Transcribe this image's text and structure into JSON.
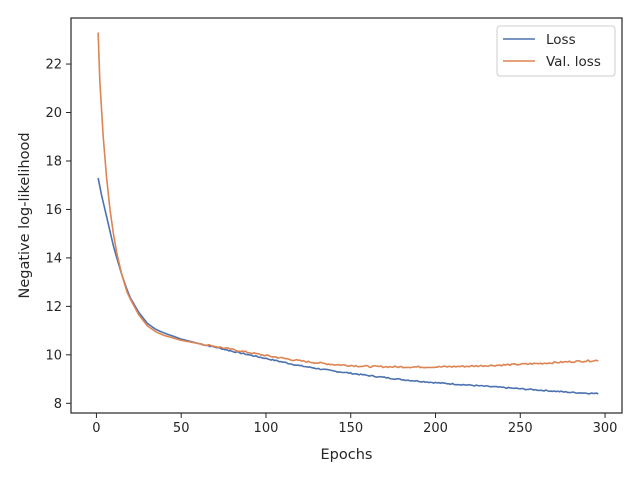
{
  "chart_data": {
    "type": "line",
    "title": "",
    "xlabel": "Epochs",
    "ylabel": "Negative log-likelihood",
    "xlim": [
      -15,
      310
    ],
    "ylim": [
      7.6,
      23.9
    ],
    "xticks": [
      0,
      50,
      100,
      150,
      200,
      250,
      300
    ],
    "yticks": [
      8,
      10,
      12,
      14,
      16,
      18,
      20,
      22
    ],
    "grid": false,
    "legend": "top-right",
    "series": [
      {
        "name": "Loss",
        "color": "#4c72b0",
        "x": [
          1,
          3,
          5,
          8,
          10,
          12,
          15,
          18,
          20,
          25,
          30,
          35,
          40,
          50,
          60,
          70,
          80,
          90,
          100,
          120,
          140,
          160,
          180,
          200,
          220,
          240,
          260,
          280,
          296
        ],
        "y": [
          17.3,
          16.6,
          16.0,
          15.1,
          14.5,
          14.0,
          13.3,
          12.7,
          12.35,
          11.75,
          11.3,
          11.05,
          10.9,
          10.65,
          10.47,
          10.32,
          10.15,
          10.0,
          9.85,
          9.55,
          9.33,
          9.15,
          8.98,
          8.85,
          8.75,
          8.65,
          8.55,
          8.45,
          8.4
        ]
      },
      {
        "name": "Val. loss",
        "color": "#dd8452",
        "x": [
          1,
          2,
          4,
          6,
          8,
          10,
          12,
          15,
          18,
          20,
          25,
          30,
          35,
          40,
          50,
          60,
          70,
          80,
          100,
          120,
          140,
          160,
          180,
          200,
          220,
          240,
          260,
          280,
          296
        ],
        "y": [
          23.3,
          21.3,
          19.0,
          17.3,
          16.0,
          15.0,
          14.2,
          13.3,
          12.6,
          12.3,
          11.65,
          11.2,
          10.95,
          10.8,
          10.6,
          10.47,
          10.35,
          10.22,
          9.97,
          9.75,
          9.6,
          9.52,
          9.5,
          9.5,
          9.53,
          9.58,
          9.64,
          9.72,
          9.77
        ]
      }
    ]
  }
}
